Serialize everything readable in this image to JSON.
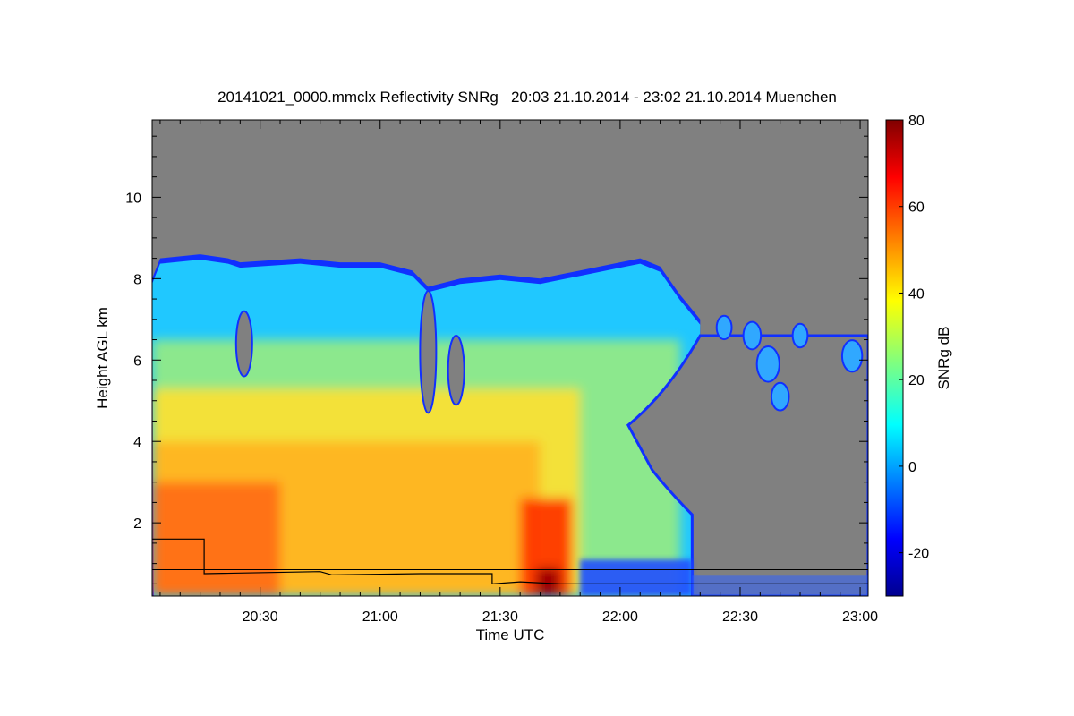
{
  "chart_data": {
    "type": "heatmap",
    "title": "20141021_0000.mmclx Reflectivity SNRg   20:03 21.10.2014 - 23:02 21.10.2014 Muenchen",
    "xlabel": "Time UTC",
    "ylabel": "Height AGL km",
    "colorbar_label": "SNRg dB",
    "x_range": [
      "20:03",
      "23:02"
    ],
    "ylim": [
      0.2,
      11.9
    ],
    "x_ticks": [
      "20:30",
      "21:00",
      "21:30",
      "22:00",
      "22:30",
      "23:00"
    ],
    "y_ticks": [
      "2",
      "4",
      "6",
      "8",
      "10"
    ],
    "colorbar_ticks": [
      "-20",
      "0",
      "20",
      "40",
      "60",
      "80"
    ],
    "colorbar_range": [
      -30,
      80
    ],
    "colormap": "jet",
    "missing_color": "#808080",
    "cloud_top_km": [
      {
        "t": "20:03",
        "h": 8.0
      },
      {
        "t": "20:05",
        "h": 8.5
      },
      {
        "t": "20:15",
        "h": 8.6
      },
      {
        "t": "20:22",
        "h": 8.5
      },
      {
        "t": "20:25",
        "h": 8.4
      },
      {
        "t": "20:40",
        "h": 8.5
      },
      {
        "t": "20:50",
        "h": 8.4
      },
      {
        "t": "21:00",
        "h": 8.4
      },
      {
        "t": "21:08",
        "h": 8.2
      },
      {
        "t": "21:12",
        "h": 7.8
      },
      {
        "t": "21:20",
        "h": 8.0
      },
      {
        "t": "21:30",
        "h": 8.1
      },
      {
        "t": "21:40",
        "h": 8.0
      },
      {
        "t": "21:50",
        "h": 8.2
      },
      {
        "t": "22:00",
        "h": 8.4
      },
      {
        "t": "22:05",
        "h": 8.5
      },
      {
        "t": "22:10",
        "h": 8.3
      },
      {
        "t": "22:15",
        "h": 7.6
      },
      {
        "t": "22:20",
        "h": 7.0
      }
    ],
    "cloud_base_line_km": [
      {
        "t": "20:03",
        "h": 1.6
      },
      {
        "t": "20:16",
        "h": 1.6
      },
      {
        "t": "20:16",
        "h": 0.75
      },
      {
        "t": "20:45",
        "h": 0.8
      },
      {
        "t": "20:48",
        "h": 0.72
      },
      {
        "t": "21:10",
        "h": 0.75
      },
      {
        "t": "21:28",
        "h": 0.75
      },
      {
        "t": "21:28",
        "h": 0.5
      },
      {
        "t": "21:35",
        "h": 0.55
      },
      {
        "t": "21:45",
        "h": 0.5
      },
      {
        "t": "23:02",
        "h": 0.5
      }
    ],
    "reference_line_km": 0.85,
    "bottom_line_km": 0.3
  }
}
